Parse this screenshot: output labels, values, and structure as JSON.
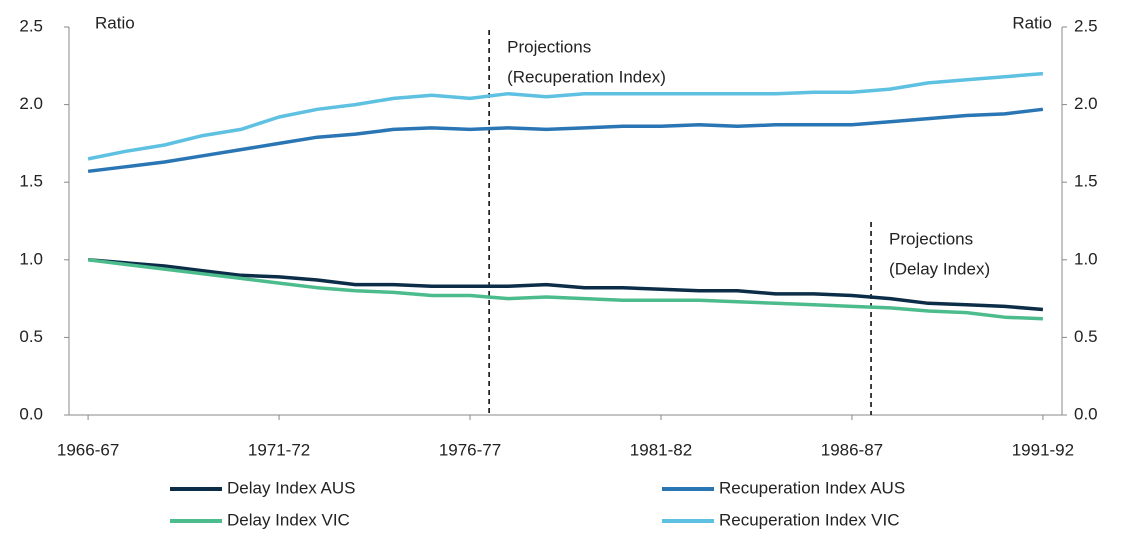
{
  "chart_data": {
    "type": "line",
    "categories": [
      "1966-67",
      null,
      null,
      null,
      null,
      "1971-72",
      null,
      null,
      null,
      null,
      "1976-77",
      null,
      null,
      null,
      null,
      "1981-82",
      null,
      null,
      null,
      null,
      "1986-87",
      null,
      null,
      null,
      null,
      "1991-92"
    ],
    "series": [
      {
        "name": "Delay Index AUS",
        "color": "#0c2d48",
        "values": [
          1.0,
          0.98,
          0.96,
          0.93,
          0.9,
          0.89,
          0.87,
          0.84,
          0.84,
          0.83,
          0.83,
          0.83,
          0.84,
          0.82,
          0.82,
          0.81,
          0.8,
          0.8,
          0.78,
          0.78,
          0.77,
          0.75,
          0.72,
          0.71,
          0.7,
          0.68
        ]
      },
      {
        "name": "Recuperation Index AUS",
        "color": "#2a76b4",
        "values": [
          1.57,
          1.6,
          1.63,
          1.67,
          1.71,
          1.75,
          1.79,
          1.81,
          1.84,
          1.85,
          1.84,
          1.85,
          1.84,
          1.85,
          1.86,
          1.86,
          1.87,
          1.86,
          1.87,
          1.87,
          1.87,
          1.89,
          1.91,
          1.93,
          1.94,
          1.97
        ]
      },
      {
        "name": "Delay Index VIC",
        "color": "#4dbc8c",
        "values": [
          1.0,
          0.97,
          0.94,
          0.91,
          0.88,
          0.85,
          0.82,
          0.8,
          0.79,
          0.77,
          0.77,
          0.75,
          0.76,
          0.75,
          0.74,
          0.74,
          0.74,
          0.73,
          0.72,
          0.71,
          0.7,
          0.69,
          0.67,
          0.66,
          0.63,
          0.62
        ]
      },
      {
        "name": "Recuperation Index VIC",
        "color": "#5ec1e2",
        "values": [
          1.65,
          1.7,
          1.74,
          1.8,
          1.84,
          1.92,
          1.97,
          2.0,
          2.04,
          2.06,
          2.04,
          2.07,
          2.05,
          2.07,
          2.07,
          2.07,
          2.07,
          2.07,
          2.07,
          2.08,
          2.08,
          2.1,
          2.14,
          2.16,
          2.18,
          2.2
        ]
      }
    ],
    "ylabel": "Ratio",
    "y2label": "Ratio",
    "ylim": [
      0,
      2.5
    ],
    "yticks": [
      {
        "value": 0,
        "label": "0.0"
      },
      0.5,
      {
        "value": 1,
        "label": "1.0"
      },
      1.5,
      {
        "value": 2,
        "label": "2.0"
      },
      2.5
    ],
    "y2lim": [
      0,
      2.5
    ],
    "y2ticks": [
      {
        "value": 0,
        "label": "0.0"
      },
      0.5,
      {
        "value": 1,
        "label": "1.0"
      },
      1.5,
      {
        "value": 2,
        "label": "2.0"
      },
      2.5
    ],
    "annotations": [
      {
        "lines": [
          "Projections",
          "(Recuperation Index)"
        ]
      },
      {
        "lines": [
          "Projections",
          "(Delay Index)"
        ]
      }
    ]
  }
}
